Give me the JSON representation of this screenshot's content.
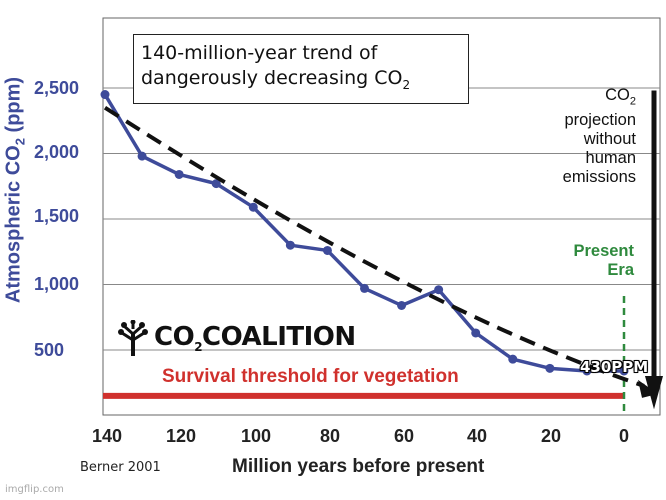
{
  "watermark": "imgflip.com",
  "source": "Berner 2001",
  "logo": {
    "prefix": "CO",
    "sub": "2",
    "suffix": "COALITION"
  },
  "annotations": {
    "title_line1": "140-million-year trend of",
    "title_line2_prefix": "dangerously decreasing CO",
    "title_line2_sub": "2",
    "projection_co": "CO",
    "projection_sub": "2",
    "projection_lines": [
      "projection",
      "without",
      "human",
      "emissions"
    ],
    "present_line1": "Present",
    "present_line2": "Era",
    "threshold": "Survival threshold for vegetation",
    "ppm_label": "430PPM"
  },
  "colors": {
    "series": "#3e4b9a",
    "threshold": "#d0312d",
    "present": "#2f8a3e",
    "trend": "#111111"
  },
  "chart_data": {
    "type": "line",
    "ylabel_prefix": "Atmospheric CO",
    "ylabel_sub": "2",
    "ylabel_suffix": " (ppm)",
    "xlabel": "Million years before present",
    "xlim": [
      140,
      0
    ],
    "ylim": [
      150,
      2700
    ],
    "x_ticks": [
      "140",
      "120",
      "100",
      "80",
      "60",
      "40",
      "20",
      "0"
    ],
    "y_ticks": [
      "2,500",
      "2,000",
      "1,500",
      "1,000",
      "500"
    ],
    "y_tick_values": [
      2500,
      2000,
      1500,
      1000,
      500
    ],
    "grid": true,
    "series": [
      {
        "x": [
          140,
          130,
          120,
          110,
          100,
          90,
          80,
          70,
          60,
          50,
          40,
          30,
          20,
          10,
          0
        ],
        "y": [
          2450,
          1980,
          1840,
          1770,
          1590,
          1300,
          1260,
          970,
          840,
          960,
          630,
          430,
          360,
          340,
          340
        ]
      }
    ],
    "trend": {
      "x": [
        140,
        0
      ],
      "y": [
        2350,
        180
      ]
    },
    "threshold_ppm": 150,
    "projection_arrow": {
      "x": 0,
      "from_y": 2450,
      "to_y": 200
    },
    "present_line_x": 0
  }
}
